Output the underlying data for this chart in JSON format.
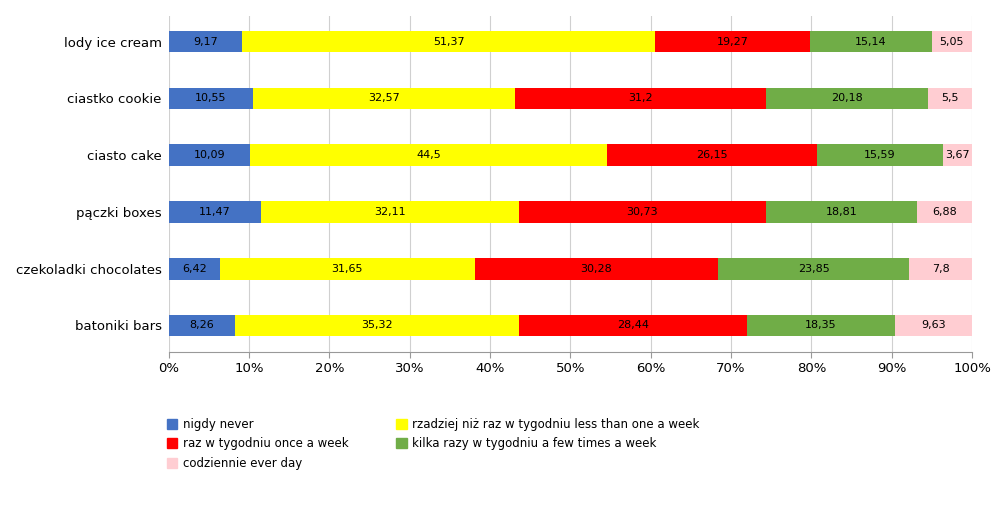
{
  "categories": [
    "batoniki bars",
    "czekoladki chocolates",
    "pączki boxes",
    "ciasto cake",
    "ciastko cookie",
    "lody ice cream"
  ],
  "series": [
    {
      "label": "nigdy never",
      "color": "#4472C4",
      "values": [
        8.26,
        6.42,
        11.47,
        10.09,
        10.55,
        9.17
      ]
    },
    {
      "label": "rzadziej niż raz w tygodniu less than one a week",
      "color": "#FFFF00",
      "values": [
        35.32,
        31.65,
        32.11,
        44.5,
        32.57,
        51.37
      ]
    },
    {
      "label": "raz w tygodniu once a week",
      "color": "#FF0000",
      "values": [
        28.44,
        30.28,
        30.73,
        26.15,
        31.2,
        19.27
      ]
    },
    {
      "label": "kilka razy w tygodniu a few times a week",
      "color": "#70AD47",
      "values": [
        18.35,
        23.85,
        18.81,
        15.59,
        20.18,
        15.14
      ]
    },
    {
      "label": "codziennie ever day",
      "color": "#FFCDD2",
      "values": [
        9.63,
        7.8,
        6.88,
        3.67,
        5.5,
        5.05
      ]
    }
  ],
  "background_color": "#ffffff",
  "grid_color": "#d0d0d0",
  "bar_height": 0.38,
  "figsize": [
    9.92,
    5.17
  ],
  "dpi": 100,
  "legend_fontsize": 8.5,
  "label_fontsize": 8.0,
  "ytick_fontsize": 9.5,
  "xtick_fontsize": 9.5,
  "legend_order": [
    0,
    2,
    4,
    1,
    3
  ]
}
